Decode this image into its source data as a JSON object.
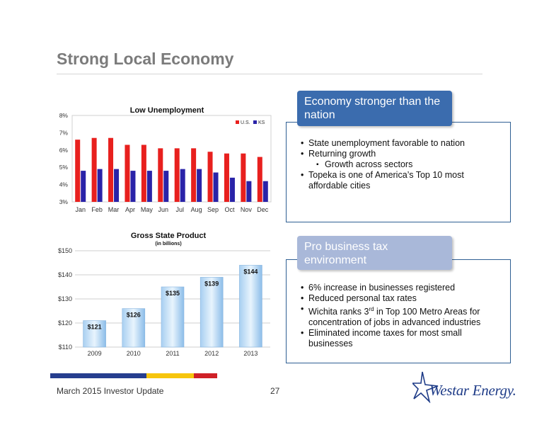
{
  "slide": {
    "title": "Strong Local Economy",
    "footer_text": "March 2015 Investor Update",
    "page_number": "27",
    "logo_text": "Westar Energy."
  },
  "colors": {
    "accent_blue": "#3b6cae",
    "pale_blue": "#a9b8d9",
    "series_us": "#e8201e",
    "series_ks": "#2a23a8",
    "bar_blue": "#263e8e",
    "bar_yellow": "#f6c50d",
    "bar_red": "#cf2027"
  },
  "panels": [
    {
      "callout": "Economy stronger than the nation",
      "bullets": [
        {
          "text": "State unemployment favorable to nation",
          "level": 1
        },
        {
          "text": "Returning growth",
          "level": 1
        },
        {
          "text": "Growth across sectors",
          "level": 2
        },
        {
          "text": "Topeka is one of America’s Top 10 most affordable cities",
          "level": 1
        }
      ]
    },
    {
      "callout": "Pro business tax environment",
      "bullets": [
        {
          "text": "6% increase in businesses registered",
          "level": 1
        },
        {
          "text": "Reduced personal tax rates",
          "level": 1
        },
        {
          "text_before": "Wichita ranks 3",
          "superscript": "rd",
          "text_after": " in Top 100 Metro Areas for concentration of jobs in advanced industries",
          "level": 1
        },
        {
          "text": "Eliminated income taxes for most small businesses",
          "level": 1
        }
      ]
    }
  ],
  "chart_data": [
    {
      "type": "bar",
      "title": "Low Unemployment",
      "categories": [
        "Jan",
        "Feb",
        "Mar",
        "Apr",
        "May",
        "Jun",
        "Jul",
        "Aug",
        "Sep",
        "Oct",
        "Nov",
        "Dec"
      ],
      "series": [
        {
          "name": "U.S.",
          "color": "#e8201e",
          "values": [
            6.6,
            6.7,
            6.7,
            6.3,
            6.3,
            6.1,
            6.1,
            6.1,
            5.9,
            5.8,
            5.8,
            5.6
          ]
        },
        {
          "name": "KS",
          "color": "#2a23a8",
          "values": [
            4.8,
            4.9,
            4.9,
            4.8,
            4.8,
            4.8,
            4.9,
            4.9,
            4.7,
            4.4,
            4.2,
            4.2
          ]
        }
      ],
      "ylim": [
        3,
        8
      ],
      "yticks": [
        3,
        4,
        5,
        6,
        7,
        8
      ],
      "ytick_labels": [
        "3%",
        "4%",
        "5%",
        "6%",
        "7%",
        "8%"
      ],
      "grid": false,
      "legend": "top-right"
    },
    {
      "type": "bar",
      "title": "Gross State Product",
      "subtitle": "(in billions)",
      "categories": [
        "2009",
        "2010",
        "2011",
        "2012",
        "2013"
      ],
      "values": [
        121,
        126,
        135,
        139,
        144
      ],
      "data_labels": [
        "$121",
        "$126",
        "$135",
        "$139",
        "$144"
      ],
      "ylim": [
        110,
        150
      ],
      "yticks": [
        110,
        120,
        130,
        140,
        150
      ],
      "ytick_labels": [
        "$110",
        "$120",
        "$130",
        "$140",
        "$150"
      ],
      "grid": true
    }
  ]
}
